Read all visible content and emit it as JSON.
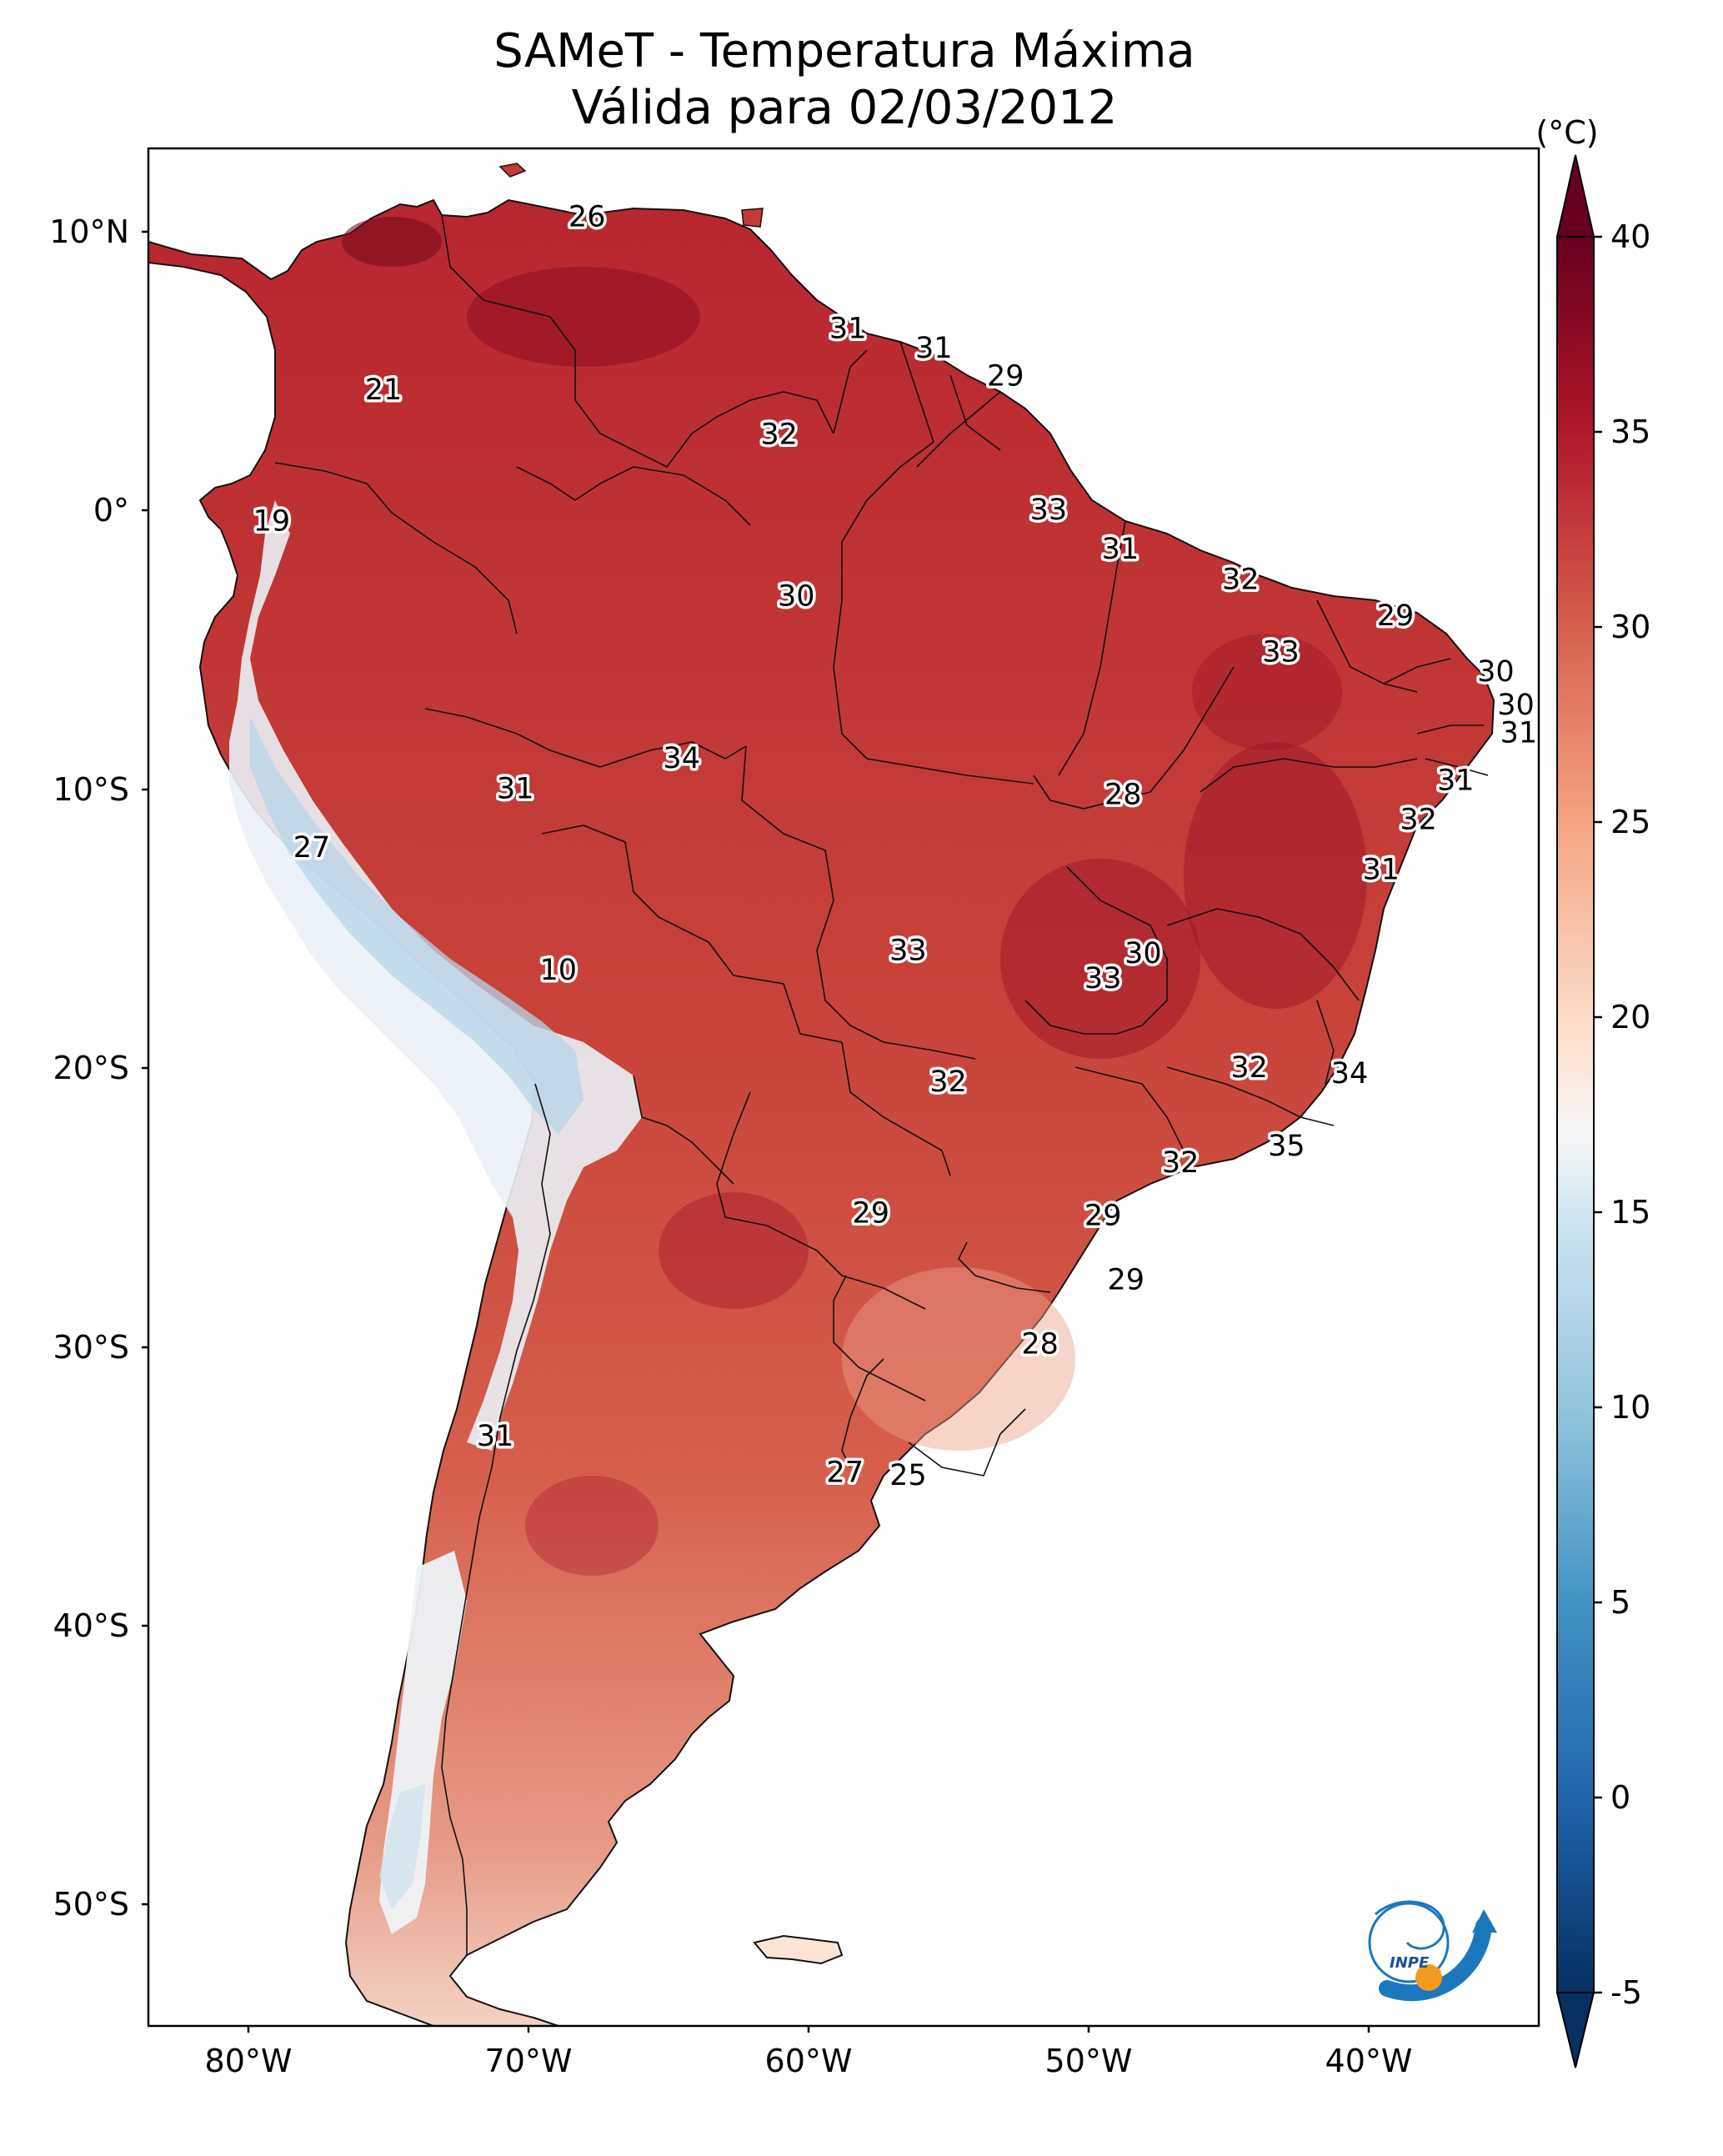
{
  "title": {
    "line1": "SAMeT - Temperatura Máxima",
    "line2": "Válida para 02/03/2012"
  },
  "lat_ticks": [
    "10°N",
    "0°",
    "10°S",
    "20°S",
    "30°S",
    "40°S",
    "50°S"
  ],
  "lon_ticks": [
    "80°W",
    "70°W",
    "60°W",
    "50°W",
    "40°W"
  ],
  "colorbar": {
    "unit": "(°C)",
    "ticks": [
      "40",
      "35",
      "30",
      "25",
      "20",
      "15",
      "10",
      "5",
      "0",
      "-5"
    ],
    "range": [
      -5,
      40
    ],
    "colors": {
      "c40": "#67001f",
      "c35": "#b2182b",
      "c30": "#d6604d",
      "c25": "#f4a582",
      "c20": "#fddbc7",
      "c17": "#f7f7f7",
      "c15": "#d1e5f0",
      "c10": "#92c5de",
      "c5": "#4393c3",
      "c0": "#2166ac",
      "cm5": "#053061"
    }
  },
  "labels": [
    {
      "text": "26",
      "lon": -67.3,
      "lat": 10.5
    },
    {
      "text": "21",
      "lon": -74.4,
      "lat": 4.3
    },
    {
      "text": "31",
      "lon": -58.2,
      "lat": 6.5
    },
    {
      "text": "31",
      "lon": -55.2,
      "lat": 5.8
    },
    {
      "text": "29",
      "lon": -52.7,
      "lat": 4.8
    },
    {
      "text": "32",
      "lon": -60.6,
      "lat": 2.7
    },
    {
      "text": "19",
      "lon": -78.3,
      "lat": -0.4
    },
    {
      "text": "33",
      "lon": -51.2,
      "lat": 0.0
    },
    {
      "text": "31",
      "lon": -48.7,
      "lat": -1.4
    },
    {
      "text": "32",
      "lon": -44.5,
      "lat": -2.5
    },
    {
      "text": "30",
      "lon": -60.0,
      "lat": -3.1
    },
    {
      "text": "29",
      "lon": -39.1,
      "lat": -3.8
    },
    {
      "text": "33",
      "lon": -43.1,
      "lat": -5.1
    },
    {
      "text": "30",
      "lon": -35.6,
      "lat": -5.8
    },
    {
      "text": "30",
      "lon": -34.9,
      "lat": -7.0
    },
    {
      "text": "31",
      "lon": -34.8,
      "lat": -8.0
    },
    {
      "text": "34",
      "lon": -64.0,
      "lat": -8.9
    },
    {
      "text": "31",
      "lon": -37.0,
      "lat": -9.7
    },
    {
      "text": "31",
      "lon": -69.8,
      "lat": -10.0
    },
    {
      "text": "28",
      "lon": -48.6,
      "lat": -10.2
    },
    {
      "text": "32",
      "lon": -38.3,
      "lat": -11.1
    },
    {
      "text": "27",
      "lon": -76.9,
      "lat": -12.1
    },
    {
      "text": "31",
      "lon": -39.6,
      "lat": -12.9
    },
    {
      "text": "33",
      "lon": -56.1,
      "lat": -15.8
    },
    {
      "text": "30",
      "lon": -47.9,
      "lat": -15.9
    },
    {
      "text": "33",
      "lon": -49.3,
      "lat": -16.8
    },
    {
      "text": "10",
      "lon": -68.3,
      "lat": -16.5
    },
    {
      "text": "32",
      "lon": -44.2,
      "lat": -20.0
    },
    {
      "text": "34",
      "lon": -40.7,
      "lat": -20.2
    },
    {
      "text": "32",
      "lon": -54.7,
      "lat": -20.5
    },
    {
      "text": "35",
      "lon": -42.9,
      "lat": -22.8
    },
    {
      "text": "32",
      "lon": -46.6,
      "lat": -23.4
    },
    {
      "text": "29",
      "lon": -57.4,
      "lat": -25.2
    },
    {
      "text": "29",
      "lon": -49.3,
      "lat": -25.3
    },
    {
      "text": "29",
      "lon": -48.5,
      "lat": -27.6
    },
    {
      "text": "28",
      "lon": -51.5,
      "lat": -29.9
    },
    {
      "text": "31",
      "lon": -70.5,
      "lat": -33.2
    },
    {
      "text": "27",
      "lon": -58.3,
      "lat": -34.5
    },
    {
      "text": "25",
      "lon": -56.1,
      "lat": -34.6
    }
  ]
}
